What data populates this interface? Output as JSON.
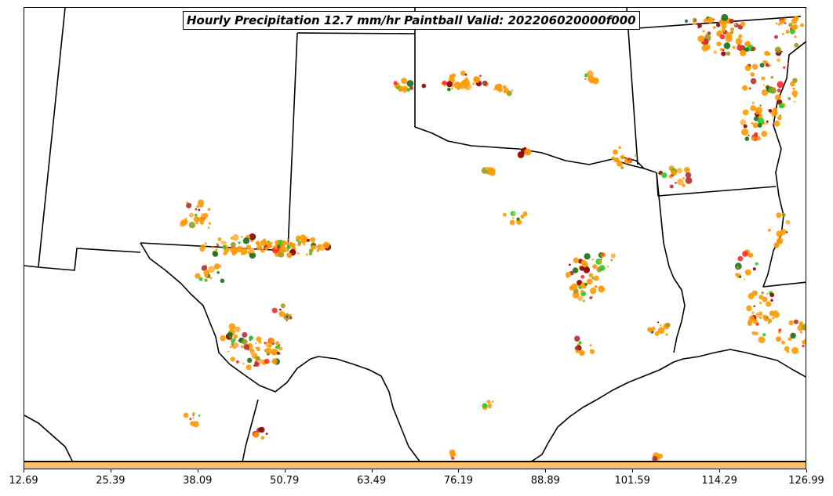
{
  "title": "Hourly Precipitation 12.7 mm/hr Paintball Valid: 202206020000f000",
  "colorbar": {
    "color": "#ffc266",
    "ticks": [
      "12.69",
      "25.39",
      "38.09",
      "50.79",
      "63.49",
      "76.19",
      "88.89",
      "101.59",
      "114.29",
      "126.99"
    ]
  },
  "colors": {
    "border": "#000000",
    "paintball": [
      "#ff9900",
      "#ff2a2a",
      "#22cc22",
      "#1a6e1a",
      "#9a9a22",
      "#b03030",
      "#8b0000",
      "#ffb347"
    ]
  }
}
